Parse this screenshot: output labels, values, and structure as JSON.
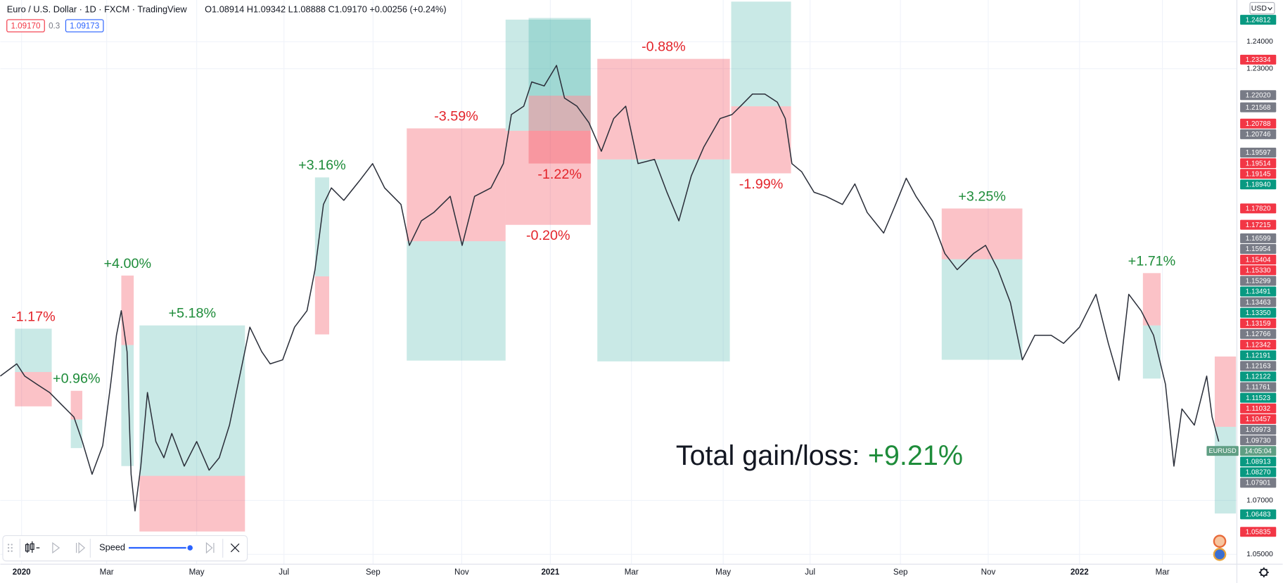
{
  "header": {
    "title": "Euro / U.S. Dollar · 1D · FXCM · TradingView",
    "ohlc": "O1.08914 H1.09342 L1.08888 C1.09170 +0.00256 (+0.24%)",
    "bid": "1.09170",
    "spread": "0.3",
    "ask": "1.09173",
    "currency": "USD"
  },
  "replay": {
    "speed": "Speed"
  },
  "chart_data": {
    "type": "line",
    "color": "#2a2e39",
    "x": [
      -0.48,
      -0.11,
      0.07,
      0.35,
      0.63,
      0.9,
      1.18,
      1.37,
      1.59,
      1.83,
      2.01,
      2.14,
      2.25,
      2.38,
      2.47,
      2.56,
      2.69,
      2.84,
      3.03,
      3.21,
      3.39,
      3.67,
      3.95,
      4.23,
      4.46,
      4.69,
      4.96,
      5.15,
      5.42,
      5.61,
      5.89,
      6.16,
      6.44,
      6.62,
      6.81,
      6.99,
      7.27,
      7.64,
      7.92,
      8.19,
      8.56,
      8.75,
      9.02,
      9.3,
      9.67,
      9.94,
      10.22,
      10.59,
      10.87,
      11.05,
      11.33,
      11.51,
      11.79,
      12.07,
      12.25,
      12.53,
      12.8,
      13.08,
      13.36,
      13.63,
      13.91,
      14.28,
      14.56,
      14.83,
      15.11,
      15.39,
      15.76,
      16.03,
      16.22,
      16.49,
      16.77,
      17.05,
      17.23,
      17.38,
      17.6,
      17.88,
      18.15,
      18.52,
      18.8,
      19.08,
      19.45,
      19.72,
      19.96,
      20.18,
      20.55,
      20.83,
      21.11,
      21.48,
      21.75,
      22.03,
      22.31,
      22.58,
      22.86,
      23.23,
      23.51,
      23.87,
      24.24,
      24.52,
      24.76,
      24.98,
      25.26,
      25.54,
      25.81,
      26.0,
      26.18,
      26.46,
      26.74,
      26.86,
      27.01
    ],
    "values": [
      1.1161,
      1.1206,
      1.1161,
      1.113,
      1.11,
      1.1055,
      1.1009,
      1.0918,
      1.0797,
      1.0903,
      1.113,
      1.1312,
      1.1403,
      1.1251,
      1.0797,
      1.0661,
      1.0827,
      1.11,
      1.0918,
      1.0858,
      1.0948,
      1.0827,
      1.0918,
      1.0812,
      1.0858,
      1.0979,
      1.1191,
      1.1342,
      1.1251,
      1.1206,
      1.1221,
      1.1342,
      1.1403,
      1.1555,
      1.1797,
      1.1858,
      1.1812,
      1.1888,
      1.1948,
      1.1858,
      1.1797,
      1.1645,
      1.1736,
      1.1767,
      1.1827,
      1.1645,
      1.1827,
      1.1858,
      1.1948,
      1.213,
      1.2161,
      1.2251,
      1.2236,
      1.2312,
      1.2191,
      1.2161,
      1.21,
      1.1994,
      1.2115,
      1.2161,
      1.1948,
      1.1964,
      1.1842,
      1.1736,
      1.1903,
      1.2009,
      1.2115,
      1.213,
      1.2161,
      1.2206,
      1.2206,
      1.2176,
      1.2115,
      1.1948,
      1.1918,
      1.1842,
      1.1827,
      1.1797,
      1.1873,
      1.1767,
      1.1691,
      1.1797,
      1.1894,
      1.1827,
      1.1736,
      1.1615,
      1.1555,
      1.1615,
      1.1645,
      1.1555,
      1.1433,
      1.1221,
      1.1312,
      1.1312,
      1.1282,
      1.1342,
      1.1464,
      1.1282,
      1.1145,
      1.1464,
      1.1403,
      1.1312,
      1.113,
      1.0827,
      1.1039,
      1.0979,
      1.1161,
      1.1009,
      1.0918
    ],
    "xlim": [
      -0.48,
      27.42
    ],
    "ylim": [
      1.04636,
      1.25545
    ],
    "xticks": [
      {
        "value": 0,
        "label": "2020"
      },
      {
        "value": 1.92,
        "label": "Mar"
      },
      {
        "value": 3.95,
        "label": "May"
      },
      {
        "value": 5.92,
        "label": "Jul"
      },
      {
        "value": 7.93,
        "label": "Sep"
      },
      {
        "value": 9.93,
        "label": "Nov"
      },
      {
        "value": 11.93,
        "label": "2021"
      },
      {
        "value": 13.76,
        "label": "Mar"
      },
      {
        "value": 15.83,
        "label": "May"
      },
      {
        "value": 17.79,
        "label": "Jul"
      },
      {
        "value": 19.83,
        "label": "Sep"
      },
      {
        "value": 21.81,
        "label": "Nov"
      },
      {
        "value": 23.87,
        "label": "2022"
      },
      {
        "value": 25.74,
        "label": "Mar"
      }
    ],
    "yticks": [
      {
        "value": 1.24,
        "label": "1.24000"
      },
      {
        "value": 1.23,
        "label": "1.23000"
      },
      {
        "value": 1.07,
        "label": "1.07000"
      },
      {
        "value": 1.05,
        "label": "1.05000"
      }
    ],
    "grid": true,
    "profit_color": "#26a69a",
    "loss_color": "#f23645",
    "gain_text_color": "#1e8c3a",
    "loss_text_color": "#e3242b",
    "trades": [
      {
        "x": [
          -0.15,
          0.68
        ],
        "entry": 1.11758,
        "target": 1.13364,
        "stop": 1.10485,
        "value": -1.17,
        "value_label": "-1.17%"
      },
      {
        "x": [
          1.11,
          1.37
        ],
        "entry": 1.1,
        "target": 1.08939,
        "stop": 1.11061,
        "value": 0.96,
        "value_label": "+0.96%"
      },
      {
        "x": [
          2.25,
          2.53
        ],
        "entry": 1.12758,
        "target": 1.08273,
        "stop": 1.15333,
        "value": 4,
        "value_label": "+4.00%"
      },
      {
        "x": [
          2.66,
          5.04
        ],
        "entry": 1.07909,
        "target": 1.13485,
        "stop": 1.05848,
        "value": 5.18,
        "value_label": "+5.18%"
      },
      {
        "x": [
          6.62,
          6.94
        ],
        "entry": 1.15303,
        "target": 1.1897,
        "stop": 1.13152,
        "value": 3.16,
        "value_label": "+3.16%"
      },
      {
        "x": [
          8.69,
          10.92
        ],
        "entry": 1.16606,
        "target": 1.12182,
        "stop": 1.20788,
        "value": -3.59,
        "value_label": "-3.59%"
      },
      {
        "x": [
          10.92,
          12.84
        ],
        "entry": 1.20697,
        "target": 1.24818,
        "stop": 1.17212,
        "value": -0.2,
        "value_label": "-0.20%"
      },
      {
        "x": [
          11.44,
          12.84
        ],
        "entry": 1.22,
        "target": 1.24879,
        "stop": 1.19485,
        "value": -1.22,
        "value_label": "-1.22%"
      },
      {
        "x": [
          12.99,
          15.98
        ],
        "entry": 1.19636,
        "target": 1.12152,
        "stop": 1.23364,
        "value": -0.88,
        "value_label": "-0.88%"
      },
      {
        "x": [
          16.01,
          17.36
        ],
        "entry": 1.21606,
        "target": 1.25485,
        "stop": 1.19121,
        "value": -1.99,
        "value_label": "-1.99%"
      },
      {
        "x": [
          20.76,
          22.58
        ],
        "entry": 1.15939,
        "target": 1.12212,
        "stop": 1.17818,
        "value": 3.25,
        "value_label": "+3.25%"
      },
      {
        "x": [
          25.3,
          25.7
        ],
        "entry": 1.13485,
        "target": 1.11515,
        "stop": 1.15424,
        "value": 1.71,
        "value_label": "+1.71%"
      },
      {
        "x": [
          26.92,
          27.4
        ],
        "entry": 1.09727,
        "target": 1.06515,
        "stop": 1.12333
      }
    ],
    "total": {
      "text": "Total gain/loss:",
      "value": 9.21,
      "value_label": "+9.21%"
    },
    "current": {
      "symbol": "EURUSD",
      "countdown": "14:05:04",
      "price": 1.0917,
      "color": "#5f9e83"
    },
    "price_tags": [
      {
        "value": 1.24812,
        "color": "#089981"
      },
      {
        "value": 1.23334,
        "color": "#f23645"
      },
      {
        "value": 1.2202,
        "label": "1.22020",
        "color": "#787b86"
      },
      {
        "value": 1.21568,
        "color": "#787b86"
      },
      {
        "value": 1.20788,
        "color": "#f23645"
      },
      {
        "value": 1.20746,
        "color": "#787b86"
      },
      {
        "value": 1.19597,
        "color": "#787b86"
      },
      {
        "value": 1.19514,
        "color": "#f23645"
      },
      {
        "value": 1.19145,
        "color": "#f23645"
      },
      {
        "value": 1.1894,
        "label": "1.18940",
        "color": "#089981"
      },
      {
        "value": 1.1782,
        "label": "1.17820",
        "color": "#f23645"
      },
      {
        "value": 1.17215,
        "color": "#f23645"
      },
      {
        "value": 1.16599,
        "color": "#787b86"
      },
      {
        "value": 1.15954,
        "color": "#787b86"
      },
      {
        "value": 1.15404,
        "color": "#f23645"
      },
      {
        "value": 1.1533,
        "label": "1.15330",
        "color": "#f23645"
      },
      {
        "value": 1.15299,
        "color": "#787b86"
      },
      {
        "value": 1.13491,
        "color": "#089981"
      },
      {
        "value": 1.13463,
        "color": "#787b86"
      },
      {
        "value": 1.1335,
        "label": "1.13350",
        "color": "#089981"
      },
      {
        "value": 1.13159,
        "color": "#f23645"
      },
      {
        "value": 1.12766,
        "color": "#787b86"
      },
      {
        "value": 1.12342,
        "color": "#f23645"
      },
      {
        "value": 1.12191,
        "color": "#089981"
      },
      {
        "value": 1.12163,
        "color": "#787b86"
      },
      {
        "value": 1.12122,
        "color": "#089981"
      },
      {
        "value": 1.11761,
        "color": "#787b86"
      },
      {
        "value": 1.11523,
        "color": "#089981"
      },
      {
        "value": 1.11032,
        "color": "#f23645"
      },
      {
        "value": 1.10457,
        "color": "#f23645"
      },
      {
        "value": 1.09973,
        "color": "#787b86"
      },
      {
        "value": 1.0973,
        "label": "1.09730",
        "color": "#787b86"
      },
      {
        "value": 1.08913,
        "color": "#089981"
      },
      {
        "value": 1.0827,
        "label": "1.08270",
        "color": "#089981"
      },
      {
        "value": 1.07901,
        "color": "#787b86"
      },
      {
        "value": 1.06483,
        "color": "#089981"
      },
      {
        "value": 1.05835,
        "color": "#f23645"
      }
    ]
  }
}
